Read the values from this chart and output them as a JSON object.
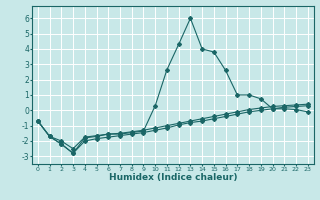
{
  "title": "",
  "xlabel": "Humidex (Indice chaleur)",
  "ylabel": "",
  "xlim": [
    -0.5,
    23.5
  ],
  "ylim": [
    -3.5,
    6.8
  ],
  "yticks": [
    -3,
    -2,
    -1,
    0,
    1,
    2,
    3,
    4,
    5,
    6
  ],
  "xticks": [
    0,
    1,
    2,
    3,
    4,
    5,
    6,
    7,
    8,
    9,
    10,
    11,
    12,
    13,
    14,
    15,
    16,
    17,
    18,
    19,
    20,
    21,
    22,
    23
  ],
  "bg_color": "#c8e8e8",
  "line_color": "#1a6666",
  "grid_color": "#ffffff",
  "line1_x": [
    0,
    1,
    2,
    3,
    4,
    5,
    6,
    7,
    8,
    9,
    10,
    11,
    12,
    13,
    14,
    15,
    16,
    17,
    18,
    19,
    20,
    21,
    22,
    23
  ],
  "line1_y": [
    -0.7,
    -1.7,
    -2.2,
    -2.8,
    -1.8,
    -1.7,
    -1.55,
    -1.55,
    -1.45,
    -1.35,
    0.3,
    2.65,
    4.3,
    6.0,
    4.0,
    3.8,
    2.6,
    1.0,
    1.0,
    0.75,
    0.1,
    0.1,
    0.05,
    -0.1
  ],
  "line2_x": [
    0,
    1,
    2,
    3,
    4,
    5,
    6,
    7,
    8,
    9,
    10,
    11,
    12,
    13,
    14,
    15,
    16,
    17,
    18,
    19,
    20,
    21,
    22,
    23
  ],
  "line2_y": [
    -0.7,
    -1.7,
    -2.0,
    -2.5,
    -1.75,
    -1.65,
    -1.55,
    -1.5,
    -1.4,
    -1.3,
    -1.15,
    -1.0,
    -0.85,
    -0.7,
    -0.55,
    -0.4,
    -0.25,
    -0.1,
    0.05,
    0.15,
    0.25,
    0.3,
    0.35,
    0.4
  ],
  "line3_x": [
    0,
    1,
    2,
    3,
    4,
    5,
    6,
    7,
    8,
    9,
    10,
    11,
    12,
    13,
    14,
    15,
    16,
    17,
    18,
    19,
    20,
    21,
    22,
    23
  ],
  "line3_y": [
    -0.7,
    -1.7,
    -2.2,
    -2.8,
    -2.0,
    -1.85,
    -1.75,
    -1.65,
    -1.55,
    -1.45,
    -1.3,
    -1.15,
    -0.95,
    -0.8,
    -0.7,
    -0.55,
    -0.4,
    -0.25,
    -0.1,
    0.0,
    0.1,
    0.2,
    0.25,
    0.3
  ]
}
